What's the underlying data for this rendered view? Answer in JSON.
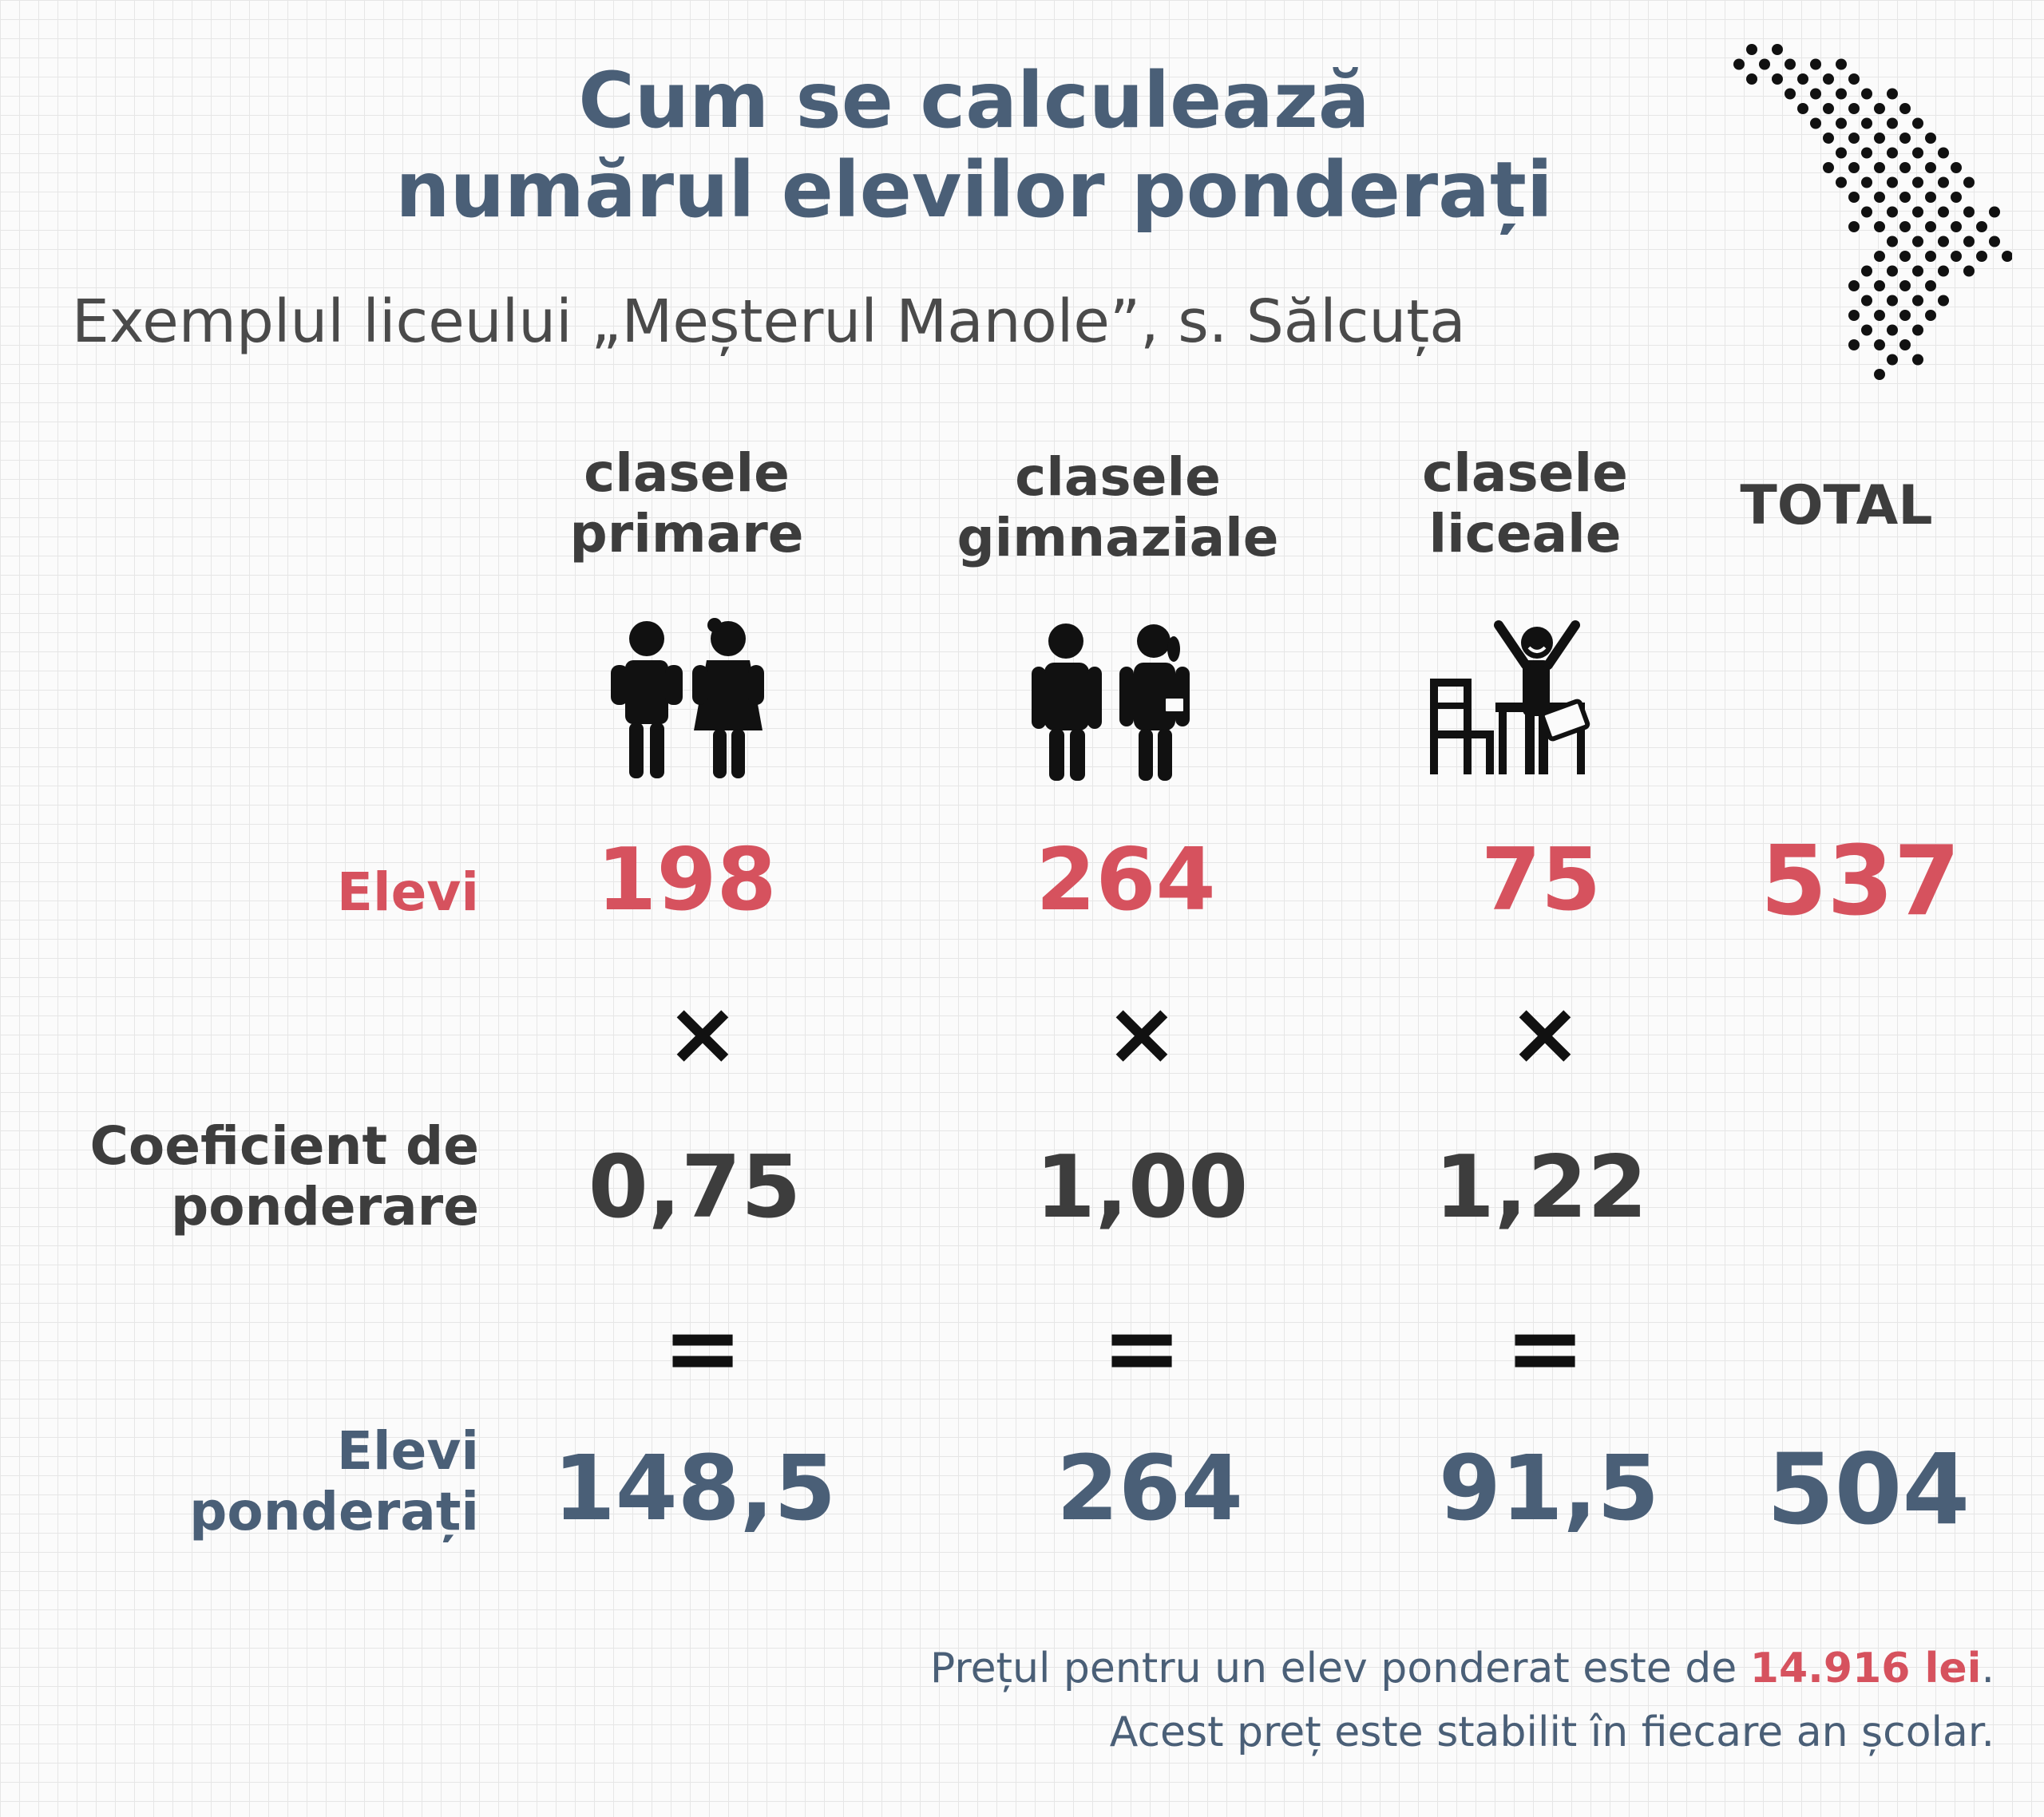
{
  "title": {
    "line1": "Cum se calculează",
    "line2": "numărul elevilor ponderați"
  },
  "subtitle": "Exemplul liceului „Meșterul Manole”, s. Sălcuța",
  "columns": {
    "primary": {
      "line1": "clasele",
      "line2": "primare"
    },
    "gymnasium": {
      "line1": "clasele",
      "line2": "gimnaziale"
    },
    "lyceum": {
      "line1": "clasele",
      "line2": "liceale"
    },
    "total": "TOTAL"
  },
  "rows": {
    "students": {
      "label": "Elevi",
      "values": [
        "198",
        "264",
        "75"
      ],
      "total": "537"
    },
    "multiply_symbol": "×",
    "coefficient": {
      "label_line1": "Coeficient de",
      "label_line2": "ponderare",
      "values": [
        "0,75",
        "1,00",
        "1,22"
      ]
    },
    "equals_symbol": "=",
    "weighted": {
      "label_line1": "Elevi",
      "label_line2": "ponderați",
      "values": [
        "148,5",
        "264",
        "91,5"
      ],
      "total": "504"
    }
  },
  "footer": {
    "line1_prefix": "Prețul pentru un elev ponderat este de ",
    "line1_amount": "14.916 lei",
    "line1_suffix": ".",
    "line2": "Acest preț este stabilit în fiecare an școlar."
  },
  "icons": {
    "map": "moldova-dot-map-icon",
    "primary": "young-pupils-with-backpacks-icon",
    "gymnasium": "teen-pupils-icon",
    "lyceum": "student-celebrating-at-desk-icon"
  },
  "colors": {
    "red": "#d6525e",
    "blue": "#4a5f77",
    "dark": "#3d3d3d"
  }
}
